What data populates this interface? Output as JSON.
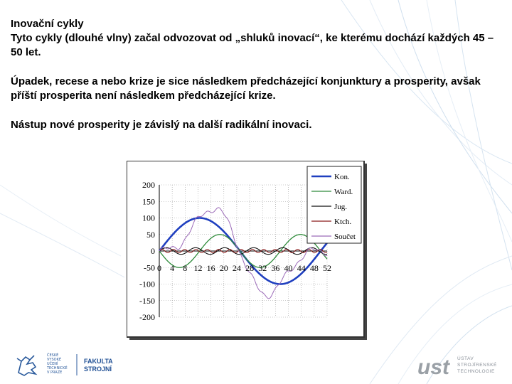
{
  "slide": {
    "title": "Inovační cykly",
    "para1": "Tyto cykly (dlouhé vlny) začal odvozovat od „shluků inovací“, ke kterému dochází každých 45 – 50 let.",
    "para2": "Úpadek, recese a nebo krize je sice následkem předcházející konjunktury a prosperity, avšak příští prosperita není následkem předcházející krize.",
    "para3": "Nástup nové prosperity je závislý na další radikální inovaci."
  },
  "chart_data": {
    "type": "line",
    "x": [
      0,
      4,
      8,
      12,
      16,
      20,
      24,
      28,
      32,
      36,
      40,
      44,
      48,
      52
    ],
    "x_tick_labels": [
      "0",
      "4",
      "8",
      "12",
      "16",
      "20",
      "24",
      "28",
      "32",
      "36",
      "40",
      "44",
      "48",
      "52"
    ],
    "y_ticks": [
      200,
      150,
      100,
      50,
      0,
      -50,
      -100,
      -150,
      -200
    ],
    "y_tick_labels": [
      "200",
      "150",
      "100",
      "50",
      "0",
      "-50",
      "-100",
      "-150",
      "-200"
    ],
    "xlim": [
      0,
      52
    ],
    "ylim": [
      -200,
      200
    ],
    "grid": true,
    "legend": "top-right",
    "series": [
      {
        "name": "Kon.",
        "color": "#1f3fbf",
        "period": 50,
        "amplitude": 100,
        "kind": "sine"
      },
      {
        "name": "Ward.",
        "color": "#2e8b3a",
        "period": 25,
        "amplitude": 50,
        "kind": "sine_neg"
      },
      {
        "name": "Jug.",
        "color": "#111111",
        "period": 9,
        "amplitude": 10,
        "kind": "sine"
      },
      {
        "name": "Ktch.",
        "color": "#8b1a1a",
        "period": 3.5,
        "amplitude": 5,
        "kind": "sine"
      },
      {
        "name": "Součet",
        "color": "#9b6ab8",
        "kind": "sum"
      }
    ]
  },
  "footer": {
    "university_lines": [
      "ČESKÉ",
      "VYSOKÉ",
      "UČENÍ",
      "TECHNICKÉ",
      "V PRAZE"
    ],
    "faculty_lines": [
      "FAKULTA",
      "STROJNÍ"
    ],
    "institute_logo": "ust",
    "institute_lines": [
      "ÚSTAV",
      "STROJÍRENSKÉ",
      "TECHNOLOGIE"
    ]
  }
}
